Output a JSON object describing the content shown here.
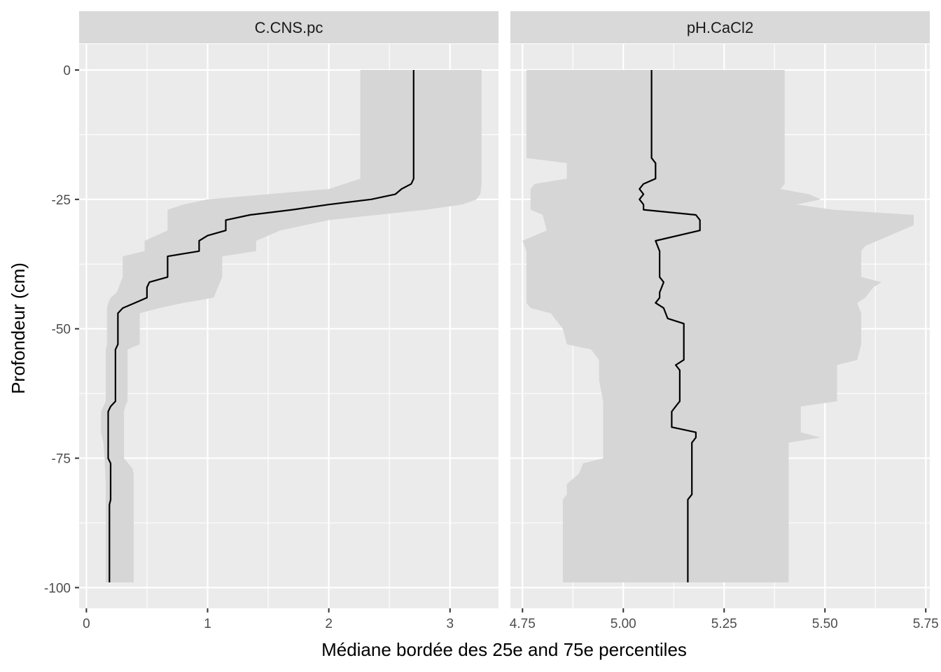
{
  "chart_data": {
    "type": "line",
    "xlabel": "Médiane bordée des 25e and 75e percentiles",
    "ylabel": "Profondeur (cm)",
    "ylim": [
      -104,
      5
    ],
    "y_ticks": [
      0,
      -25,
      -50,
      -75,
      -100
    ],
    "y_tick_labels": [
      "0",
      "-25",
      "-50",
      "-75",
      "-100"
    ],
    "grid": true,
    "colors": {
      "panel_bg": "#EBEBEB",
      "strip_bg": "#D9D9D9",
      "band": "#D6D6D6",
      "median_line": "#000000",
      "grid": "#FFFFFF",
      "text": "#4D4D4D",
      "title_text": "#1A1A1A"
    },
    "panels": [
      {
        "title": "C.CNS.pc",
        "xlim": [
          -0.06,
          3.4
        ],
        "x_ticks": [
          0,
          1,
          2,
          3
        ],
        "x_tick_labels": [
          "0",
          "1",
          "2",
          "3"
        ],
        "x_minor": [
          0.5,
          1.5,
          2.5
        ],
        "series": [
          {
            "kind": "median",
            "points": [
              [
                2.7,
                0
              ],
              [
                2.7,
                -21
              ],
              [
                2.68,
                -22
              ],
              [
                2.6,
                -23
              ],
              [
                2.55,
                -24
              ],
              [
                2.35,
                -25
              ],
              [
                2.0,
                -26
              ],
              [
                1.7,
                -27
              ],
              [
                1.35,
                -28
              ],
              [
                1.15,
                -29
              ],
              [
                1.15,
                -31
              ],
              [
                1.0,
                -32
              ],
              [
                0.93,
                -33
              ],
              [
                0.93,
                -35
              ],
              [
                0.67,
                -36
              ],
              [
                0.67,
                -40
              ],
              [
                0.52,
                -41
              ],
              [
                0.5,
                -42
              ],
              [
                0.5,
                -44
              ],
              [
                0.4,
                -45
              ],
              [
                0.3,
                -46
              ],
              [
                0.26,
                -47
              ],
              [
                0.26,
                -53
              ],
              [
                0.24,
                -54
              ],
              [
                0.24,
                -64
              ],
              [
                0.2,
                -65
              ],
              [
                0.18,
                -66
              ],
              [
                0.18,
                -75
              ],
              [
                0.2,
                -76
              ],
              [
                0.2,
                -83
              ],
              [
                0.19,
                -84
              ],
              [
                0.19,
                -99
              ]
            ]
          },
          {
            "kind": "band",
            "lower": [
              [
                2.26,
                0
              ],
              [
                2.26,
                -21
              ],
              [
                2.0,
                -23
              ],
              [
                1.5,
                -24
              ],
              [
                1.0,
                -25
              ],
              [
                0.8,
                -26
              ],
              [
                0.67,
                -27
              ],
              [
                0.67,
                -29
              ],
              [
                0.67,
                -31
              ],
              [
                0.48,
                -33
              ],
              [
                0.48,
                -35
              ],
              [
                0.3,
                -36
              ],
              [
                0.3,
                -40
              ],
              [
                0.25,
                -43
              ],
              [
                0.2,
                -44
              ],
              [
                0.18,
                -45
              ],
              [
                0.17,
                -46
              ],
              [
                0.17,
                -53
              ],
              [
                0.16,
                -54
              ],
              [
                0.16,
                -64
              ],
              [
                0.14,
                -65
              ],
              [
                0.12,
                -66
              ],
              [
                0.12,
                -70
              ],
              [
                0.14,
                -72
              ],
              [
                0.15,
                -75
              ],
              [
                0.16,
                -80
              ],
              [
                0.16,
                -99
              ]
            ],
            "upper": [
              [
                3.26,
                0
              ],
              [
                3.26,
                -22
              ],
              [
                3.25,
                -24
              ],
              [
                3.22,
                -25
              ],
              [
                3.1,
                -26
              ],
              [
                2.8,
                -27
              ],
              [
                2.0,
                -29
              ],
              [
                1.8,
                -30
              ],
              [
                1.6,
                -31
              ],
              [
                1.4,
                -33
              ],
              [
                1.4,
                -35
              ],
              [
                1.12,
                -36
              ],
              [
                1.12,
                -40
              ],
              [
                1.05,
                -44
              ],
              [
                0.8,
                -45
              ],
              [
                0.6,
                -46
              ],
              [
                0.44,
                -47
              ],
              [
                0.44,
                -53
              ],
              [
                0.34,
                -54
              ],
              [
                0.34,
                -64
              ],
              [
                0.32,
                -65
              ],
              [
                0.31,
                -66
              ],
              [
                0.31,
                -75
              ],
              [
                0.38,
                -77
              ],
              [
                0.39,
                -78
              ],
              [
                0.39,
                -99
              ]
            ]
          }
        ]
      },
      {
        "title": "pH.CaCl2",
        "xlim": [
          4.72,
          5.76
        ],
        "x_ticks": [
          4.75,
          5.0,
          5.25,
          5.5,
          5.75
        ],
        "x_tick_labels": [
          "4.75",
          "5.00",
          "5.25",
          "5.50",
          "5.75"
        ],
        "x_minor": [
          4.875,
          5.125,
          5.375,
          5.625
        ],
        "series": [
          {
            "kind": "median",
            "points": [
              [
                5.07,
                0
              ],
              [
                5.07,
                -17
              ],
              [
                5.08,
                -18
              ],
              [
                5.08,
                -21
              ],
              [
                5.05,
                -22
              ],
              [
                5.04,
                -23
              ],
              [
                5.05,
                -24
              ],
              [
                5.04,
                -25
              ],
              [
                5.05,
                -26
              ],
              [
                5.05,
                -27
              ],
              [
                5.18,
                -28
              ],
              [
                5.19,
                -29
              ],
              [
                5.19,
                -31
              ],
              [
                5.08,
                -33
              ],
              [
                5.09,
                -35
              ],
              [
                5.09,
                -40
              ],
              [
                5.1,
                -41
              ],
              [
                5.09,
                -43
              ],
              [
                5.09,
                -44
              ],
              [
                5.08,
                -45
              ],
              [
                5.1,
                -46
              ],
              [
                5.11,
                -48
              ],
              [
                5.15,
                -49
              ],
              [
                5.15,
                -53
              ],
              [
                5.15,
                -56
              ],
              [
                5.13,
                -57
              ],
              [
                5.14,
                -58
              ],
              [
                5.14,
                -64
              ],
              [
                5.13,
                -65
              ],
              [
                5.12,
                -66
              ],
              [
                5.12,
                -69
              ],
              [
                5.18,
                -70
              ],
              [
                5.18,
                -71
              ],
              [
                5.17,
                -72
              ],
              [
                5.17,
                -82
              ],
              [
                5.16,
                -83
              ],
              [
                5.16,
                -99
              ]
            ]
          },
          {
            "kind": "band",
            "lower": [
              [
                4.76,
                0
              ],
              [
                4.76,
                -17
              ],
              [
                4.86,
                -18
              ],
              [
                4.86,
                -21
              ],
              [
                4.78,
                -22
              ],
              [
                4.77,
                -23
              ],
              [
                4.77,
                -27
              ],
              [
                4.8,
                -28
              ],
              [
                4.81,
                -31
              ],
              [
                4.75,
                -33
              ],
              [
                4.76,
                -35
              ],
              [
                4.76,
                -40
              ],
              [
                4.76,
                -45
              ],
              [
                4.77,
                -46
              ],
              [
                4.82,
                -47
              ],
              [
                4.85,
                -50
              ],
              [
                4.86,
                -53
              ],
              [
                4.92,
                -54
              ],
              [
                4.94,
                -56
              ],
              [
                4.94,
                -60
              ],
              [
                4.95,
                -64
              ],
              [
                4.95,
                -75
              ],
              [
                4.9,
                -76
              ],
              [
                4.89,
                -78
              ],
              [
                4.86,
                -80
              ],
              [
                4.86,
                -82
              ],
              [
                4.85,
                -83
              ],
              [
                4.85,
                -99
              ]
            ],
            "upper": [
              [
                5.4,
                0
              ],
              [
                5.4,
                -22
              ],
              [
                5.39,
                -23
              ],
              [
                5.46,
                -24
              ],
              [
                5.49,
                -25
              ],
              [
                5.43,
                -26
              ],
              [
                5.52,
                -27
              ],
              [
                5.72,
                -28
              ],
              [
                5.72,
                -30
              ],
              [
                5.6,
                -34
              ],
              [
                5.59,
                -35
              ],
              [
                5.59,
                -40
              ],
              [
                5.64,
                -41
              ],
              [
                5.62,
                -42
              ],
              [
                5.6,
                -44
              ],
              [
                5.58,
                -45
              ],
              [
                5.59,
                -47
              ],
              [
                5.59,
                -53
              ],
              [
                5.58,
                -56
              ],
              [
                5.53,
                -57
              ],
              [
                5.53,
                -64
              ],
              [
                5.44,
                -65
              ],
              [
                5.44,
                -70
              ],
              [
                5.49,
                -71
              ],
              [
                5.41,
                -72
              ],
              [
                5.41,
                -99
              ]
            ]
          }
        ]
      }
    ]
  }
}
